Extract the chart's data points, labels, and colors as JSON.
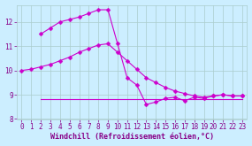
{
  "bg_color": "#cceeff",
  "grid_color": "#aacccc",
  "line_color": "#cc00cc",
  "markersize": 2.5,
  "linewidth": 0.8,
  "xlabel": "Windchill (Refroidissement éolien,°C)",
  "xlim": [
    -0.5,
    23.5
  ],
  "ylim": [
    8,
    12.7
  ],
  "yticks": [
    8,
    9,
    10,
    11,
    12
  ],
  "xticks": [
    0,
    1,
    2,
    3,
    4,
    5,
    6,
    7,
    8,
    9,
    10,
    11,
    12,
    13,
    14,
    15,
    16,
    17,
    18,
    19,
    20,
    21,
    22,
    23
  ],
  "line1_x": [
    0,
    1,
    2,
    3,
    4,
    5,
    6,
    7,
    8,
    9,
    10,
    11,
    12,
    13,
    14,
    15,
    16,
    17,
    18,
    19,
    20,
    21,
    22,
    23
  ],
  "line1_y": [
    10.0,
    10.05,
    10.15,
    10.25,
    10.4,
    10.55,
    10.75,
    10.9,
    11.05,
    11.1,
    10.75,
    10.4,
    10.05,
    9.7,
    9.5,
    9.3,
    9.15,
    9.05,
    8.95,
    8.9,
    8.95,
    9.0,
    8.95,
    8.95
  ],
  "line2_x": [
    2,
    3,
    4,
    5,
    6,
    7,
    8,
    9,
    10,
    11,
    12,
    13,
    14,
    15,
    16,
    17,
    18,
    19,
    20,
    21,
    22,
    23
  ],
  "line2_y": [
    11.5,
    11.75,
    12.0,
    12.1,
    12.2,
    12.35,
    12.5,
    12.5,
    11.1,
    9.7,
    9.4,
    8.6,
    8.7,
    8.85,
    8.9,
    8.75,
    8.9,
    8.85,
    8.95,
    9.0,
    8.95,
    8.95
  ],
  "line3_x": [
    2,
    3,
    4,
    5,
    6,
    7,
    8,
    9,
    10,
    11,
    12,
    13,
    14,
    15,
    16,
    17,
    18,
    19,
    20,
    21,
    22,
    23
  ],
  "line3_y": [
    8.82,
    8.82,
    8.82,
    8.82,
    8.82,
    8.82,
    8.82,
    8.82,
    8.82,
    8.82,
    8.82,
    8.82,
    8.82,
    8.82,
    8.82,
    8.82,
    8.82,
    8.82,
    8.82,
    8.82,
    8.82,
    8.82
  ],
  "xlabel_fontsize": 6,
  "tick_fontsize": 5.5,
  "tick_color": "#880088",
  "xlabel_color": "#880088"
}
